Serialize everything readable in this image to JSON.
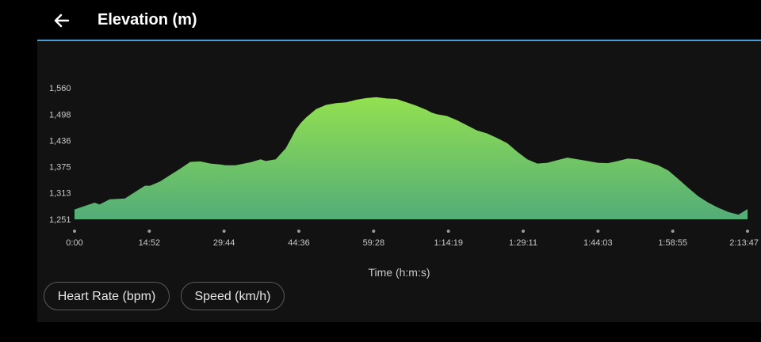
{
  "header": {
    "title": "Elevation (m)",
    "back_icon": "arrow-left-icon"
  },
  "chips": [
    {
      "label": "Heart Rate (bpm)"
    },
    {
      "label": "Speed (km/h)"
    }
  ],
  "colors": {
    "background": "#000000",
    "panel": "#121212",
    "accent_line": "#4a9fd8",
    "fill_top": "#93e050",
    "fill_bottom": "#52ad78"
  },
  "chart_data": {
    "type": "area",
    "title": "Elevation (m)",
    "xlabel": "Time (h:m:s)",
    "ylabel": "",
    "x_tick_labels": [
      "0:00",
      "14:52",
      "29:44",
      "44:36",
      "59:28",
      "1:14:19",
      "1:29:11",
      "1:44:03",
      "1:58:55",
      "2:13:47"
    ],
    "y_tick_labels": [
      "1,251",
      "1,313",
      "1,375",
      "1,436",
      "1,498",
      "1,560"
    ],
    "y_ticks": [
      1251,
      1313,
      1375,
      1436,
      1498,
      1560
    ],
    "xlim_minutes": [
      0,
      133.78
    ],
    "ylim": [
      1251,
      1560
    ],
    "grid": false,
    "series": [
      {
        "x_minutes": [
          0,
          2,
          4,
          5,
          7,
          10,
          12,
          14,
          15,
          17,
          19,
          21,
          23,
          25,
          27,
          29,
          30,
          32,
          35,
          37,
          38,
          40,
          42,
          43,
          44,
          45,
          46,
          48,
          50,
          52,
          54,
          56,
          58,
          60,
          62,
          64,
          66,
          68,
          70,
          71,
          72,
          74,
          76,
          78,
          80,
          82,
          84,
          86,
          88,
          90,
          92,
          94,
          96,
          98,
          100,
          102,
          104,
          106,
          108,
          110,
          112,
          114,
          116,
          118,
          120,
          122,
          124,
          126,
          128,
          130,
          132,
          133.78
        ],
        "y": [
          1274,
          1282,
          1290,
          1286,
          1298,
          1300,
          1315,
          1330,
          1330,
          1340,
          1355,
          1370,
          1386,
          1387,
          1382,
          1380,
          1378,
          1378,
          1385,
          1392,
          1388,
          1392,
          1418,
          1440,
          1462,
          1478,
          1490,
          1510,
          1520,
          1524,
          1526,
          1532,
          1536,
          1538,
          1535,
          1534,
          1526,
          1518,
          1508,
          1502,
          1498,
          1494,
          1484,
          1472,
          1460,
          1453,
          1442,
          1430,
          1410,
          1392,
          1382,
          1384,
          1390,
          1396,
          1392,
          1388,
          1384,
          1383,
          1388,
          1394,
          1392,
          1385,
          1378,
          1366,
          1346,
          1325,
          1305,
          1290,
          1278,
          1268,
          1262,
          1275
        ]
      }
    ]
  }
}
